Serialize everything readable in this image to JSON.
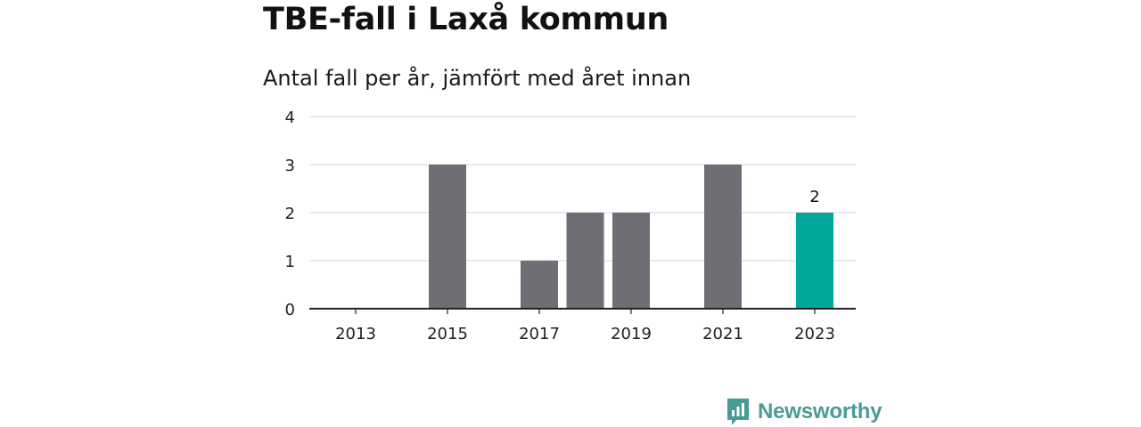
{
  "title": "TBE-fall i Laxå kommun",
  "subtitle": "Antal fall per år, jämfört med året innan",
  "brand": {
    "name": "Newsworthy",
    "icon": "newsworthy-logo-icon",
    "color": "#4a9b97"
  },
  "colors": {
    "bar": "#6f6e74",
    "highlight": "#00a79a",
    "grid": "#dddddd",
    "axis": "#222222"
  },
  "chart_data": {
    "type": "bar",
    "categories": [
      "2013",
      "2014",
      "2015",
      "2016",
      "2017",
      "2018",
      "2019",
      "2020",
      "2021",
      "2022",
      "2023"
    ],
    "values": [
      0,
      0,
      3,
      0,
      1,
      2,
      2,
      0,
      3,
      0,
      2
    ],
    "tick_labels_x": [
      "2013",
      "2015",
      "2017",
      "2019",
      "2021",
      "2023"
    ],
    "yticks": [
      0,
      1,
      2,
      3,
      4
    ],
    "ylim": [
      0,
      4
    ],
    "grid": true,
    "highlight_category": "2023",
    "data_labels": [
      {
        "category": "2023",
        "text": "2"
      }
    ],
    "title": "TBE-fall i Laxå kommun",
    "subtitle": "Antal fall per år, jämfört med året innan"
  }
}
